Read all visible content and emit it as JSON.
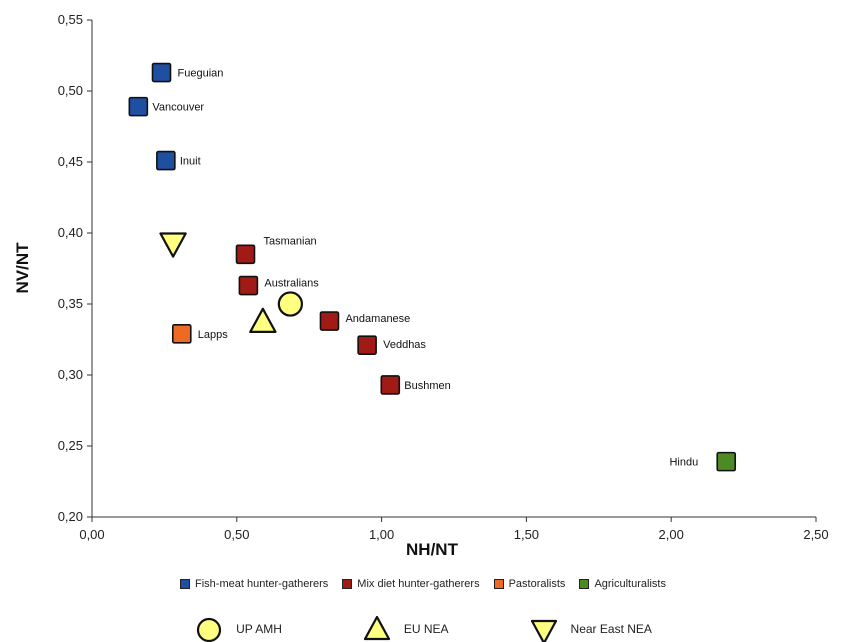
{
  "chart_data": {
    "type": "scatter",
    "xlabel": "NH/NT",
    "ylabel": "NV/NT",
    "xlim": [
      0.0,
      2.5
    ],
    "ylim": [
      0.2,
      0.55
    ],
    "x_ticks": [
      "0,00",
      "0,50",
      "1,00",
      "1,50",
      "2,00",
      "2,50"
    ],
    "x_tick_values": [
      0.0,
      0.5,
      1.0,
      1.5,
      2.0,
      2.5
    ],
    "y_ticks": [
      "0,20",
      "0,25",
      "0,30",
      "0,35",
      "0,40",
      "0,45",
      "0,50",
      "0,55"
    ],
    "y_tick_values": [
      0.2,
      0.25,
      0.3,
      0.35,
      0.4,
      0.45,
      0.5,
      0.55
    ],
    "grid": false,
    "legend_position": "bottom",
    "groups": [
      {
        "name": "Fish-meat hunter-gatherers",
        "color": "#1f4fa0",
        "marker": "square",
        "points": [
          {
            "label": "Fueguian",
            "x": 0.24,
            "y": 0.513
          },
          {
            "label": "Vancouver",
            "x": 0.16,
            "y": 0.489
          },
          {
            "label": "Inuit",
            "x": 0.255,
            "y": 0.451
          }
        ]
      },
      {
        "name": "Mix diet hunter-gatherers",
        "color": "#a01a16",
        "marker": "square",
        "points": [
          {
            "label": "Tasmanian",
            "x": 0.53,
            "y": 0.385
          },
          {
            "label": "Australians",
            "x": 0.54,
            "y": 0.363
          },
          {
            "label": "Andamanese",
            "x": 0.82,
            "y": 0.338
          },
          {
            "label": "Veddhas",
            "x": 0.95,
            "y": 0.321
          },
          {
            "label": "Bushmen",
            "x": 1.03,
            "y": 0.293
          }
        ]
      },
      {
        "name": "Pastoralists",
        "color": "#ee6a22",
        "marker": "square",
        "points": [
          {
            "label": "Lapps",
            "x": 0.31,
            "y": 0.329
          }
        ]
      },
      {
        "name": "Agriculturalists",
        "color": "#4e8a24",
        "marker": "square",
        "points": [
          {
            "label": "Hindu",
            "x": 2.19,
            "y": 0.239
          }
        ]
      }
    ],
    "fossils": [
      {
        "name": "UP AMH",
        "marker": "circle",
        "color": "#ffff80",
        "x": 0.685,
        "y": 0.35
      },
      {
        "name": "EU NEA",
        "marker": "triangle-up",
        "color": "#ffff80",
        "x": 0.59,
        "y": 0.337
      },
      {
        "name": "Near East NEA",
        "marker": "triangle-down",
        "color": "#ffff80",
        "x": 0.28,
        "y": 0.393
      }
    ]
  }
}
